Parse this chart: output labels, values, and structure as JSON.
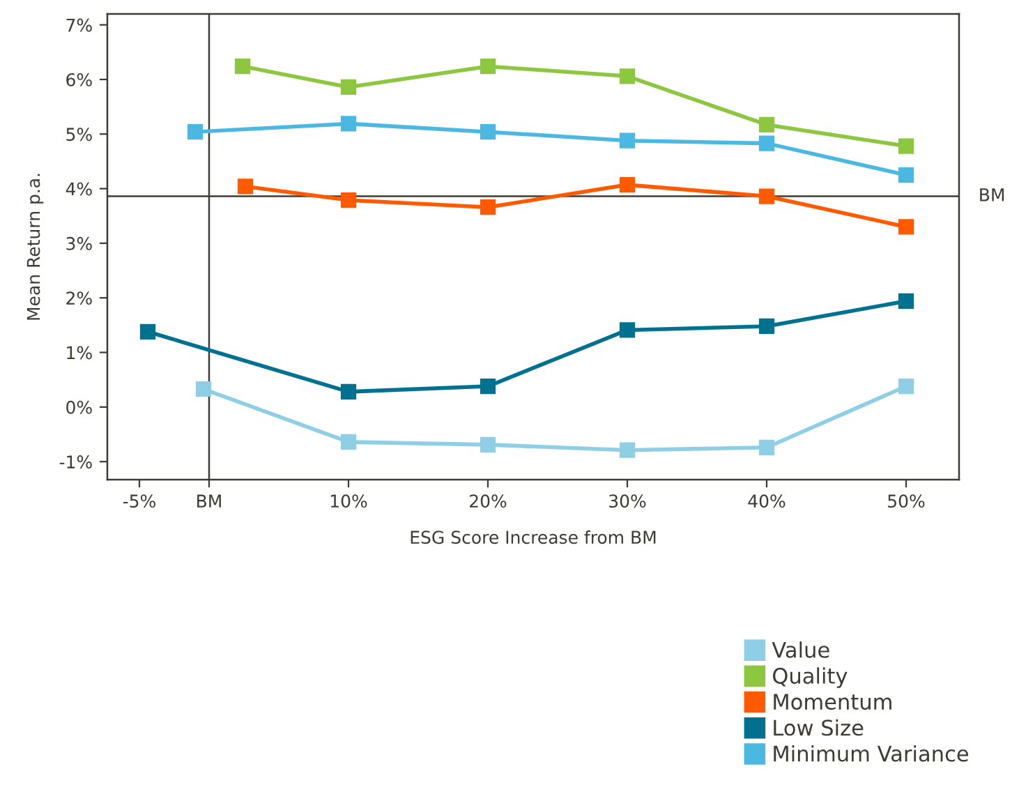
{
  "chart_data": {
    "type": "line",
    "xlabel": "ESG Score Increase from BM",
    "ylabel": "Mean Return p.a.",
    "xlim": [
      -7.3,
      53.8
    ],
    "ylim": [
      -1.33,
      7.2
    ],
    "xticks": [
      {
        "value": -5,
        "label": "-5%"
      },
      {
        "value": 0,
        "label": "BM"
      },
      {
        "value": 10,
        "label": "10%"
      },
      {
        "value": 20,
        "label": "20%"
      },
      {
        "value": 30,
        "label": "30%"
      },
      {
        "value": 40,
        "label": "40%"
      },
      {
        "value": 50,
        "label": "50%"
      }
    ],
    "yticks": [
      {
        "value": -1,
        "label": "-1%"
      },
      {
        "value": 0,
        "label": "0%"
      },
      {
        "value": 1,
        "label": "1%"
      },
      {
        "value": 2,
        "label": "2%"
      },
      {
        "value": 3,
        "label": "3%"
      },
      {
        "value": 4,
        "label": "4%"
      },
      {
        "value": 5,
        "label": "5%"
      },
      {
        "value": 6,
        "label": "6%"
      },
      {
        "value": 7,
        "label": "7%"
      }
    ],
    "series": [
      {
        "name": "Value",
        "color": "#8ecfe6",
        "x": [
          -0.4,
          10,
          20,
          30,
          40,
          50
        ],
        "values": [
          0.33,
          -0.64,
          -0.69,
          -0.79,
          -0.74,
          0.38
        ]
      },
      {
        "name": "Quality",
        "color": "#8dc63f",
        "x": [
          2.4,
          10,
          20,
          30,
          40,
          50
        ],
        "values": [
          6.24,
          5.86,
          6.24,
          6.06,
          5.17,
          4.78
        ]
      },
      {
        "name": "Momentum",
        "color": "#ff5a00",
        "x": [
          2.6,
          10,
          20,
          30,
          40,
          50
        ],
        "values": [
          4.04,
          3.79,
          3.66,
          4.07,
          3.86,
          3.3
        ]
      },
      {
        "name": "Low Size",
        "color": "#00728f",
        "x": [
          -4.4,
          10,
          20,
          30,
          40,
          50
        ],
        "values": [
          1.38,
          0.28,
          0.38,
          1.41,
          1.48,
          1.94
        ]
      },
      {
        "name": "Minimum Variance",
        "color": "#4ab8e0",
        "x": [
          -1,
          10,
          20,
          30,
          40,
          50
        ],
        "values": [
          5.04,
          5.19,
          5.04,
          4.88,
          4.83,
          4.25
        ]
      }
    ],
    "ref_lines": [
      {
        "axis": "y",
        "value": 3.86,
        "label": "BM",
        "color": "#3c3c32"
      },
      {
        "axis": "x",
        "value": 0,
        "color": "#3c3c32"
      }
    ],
    "marker": "square",
    "line_style": "solid",
    "grid": false,
    "legend": "bottom right"
  }
}
